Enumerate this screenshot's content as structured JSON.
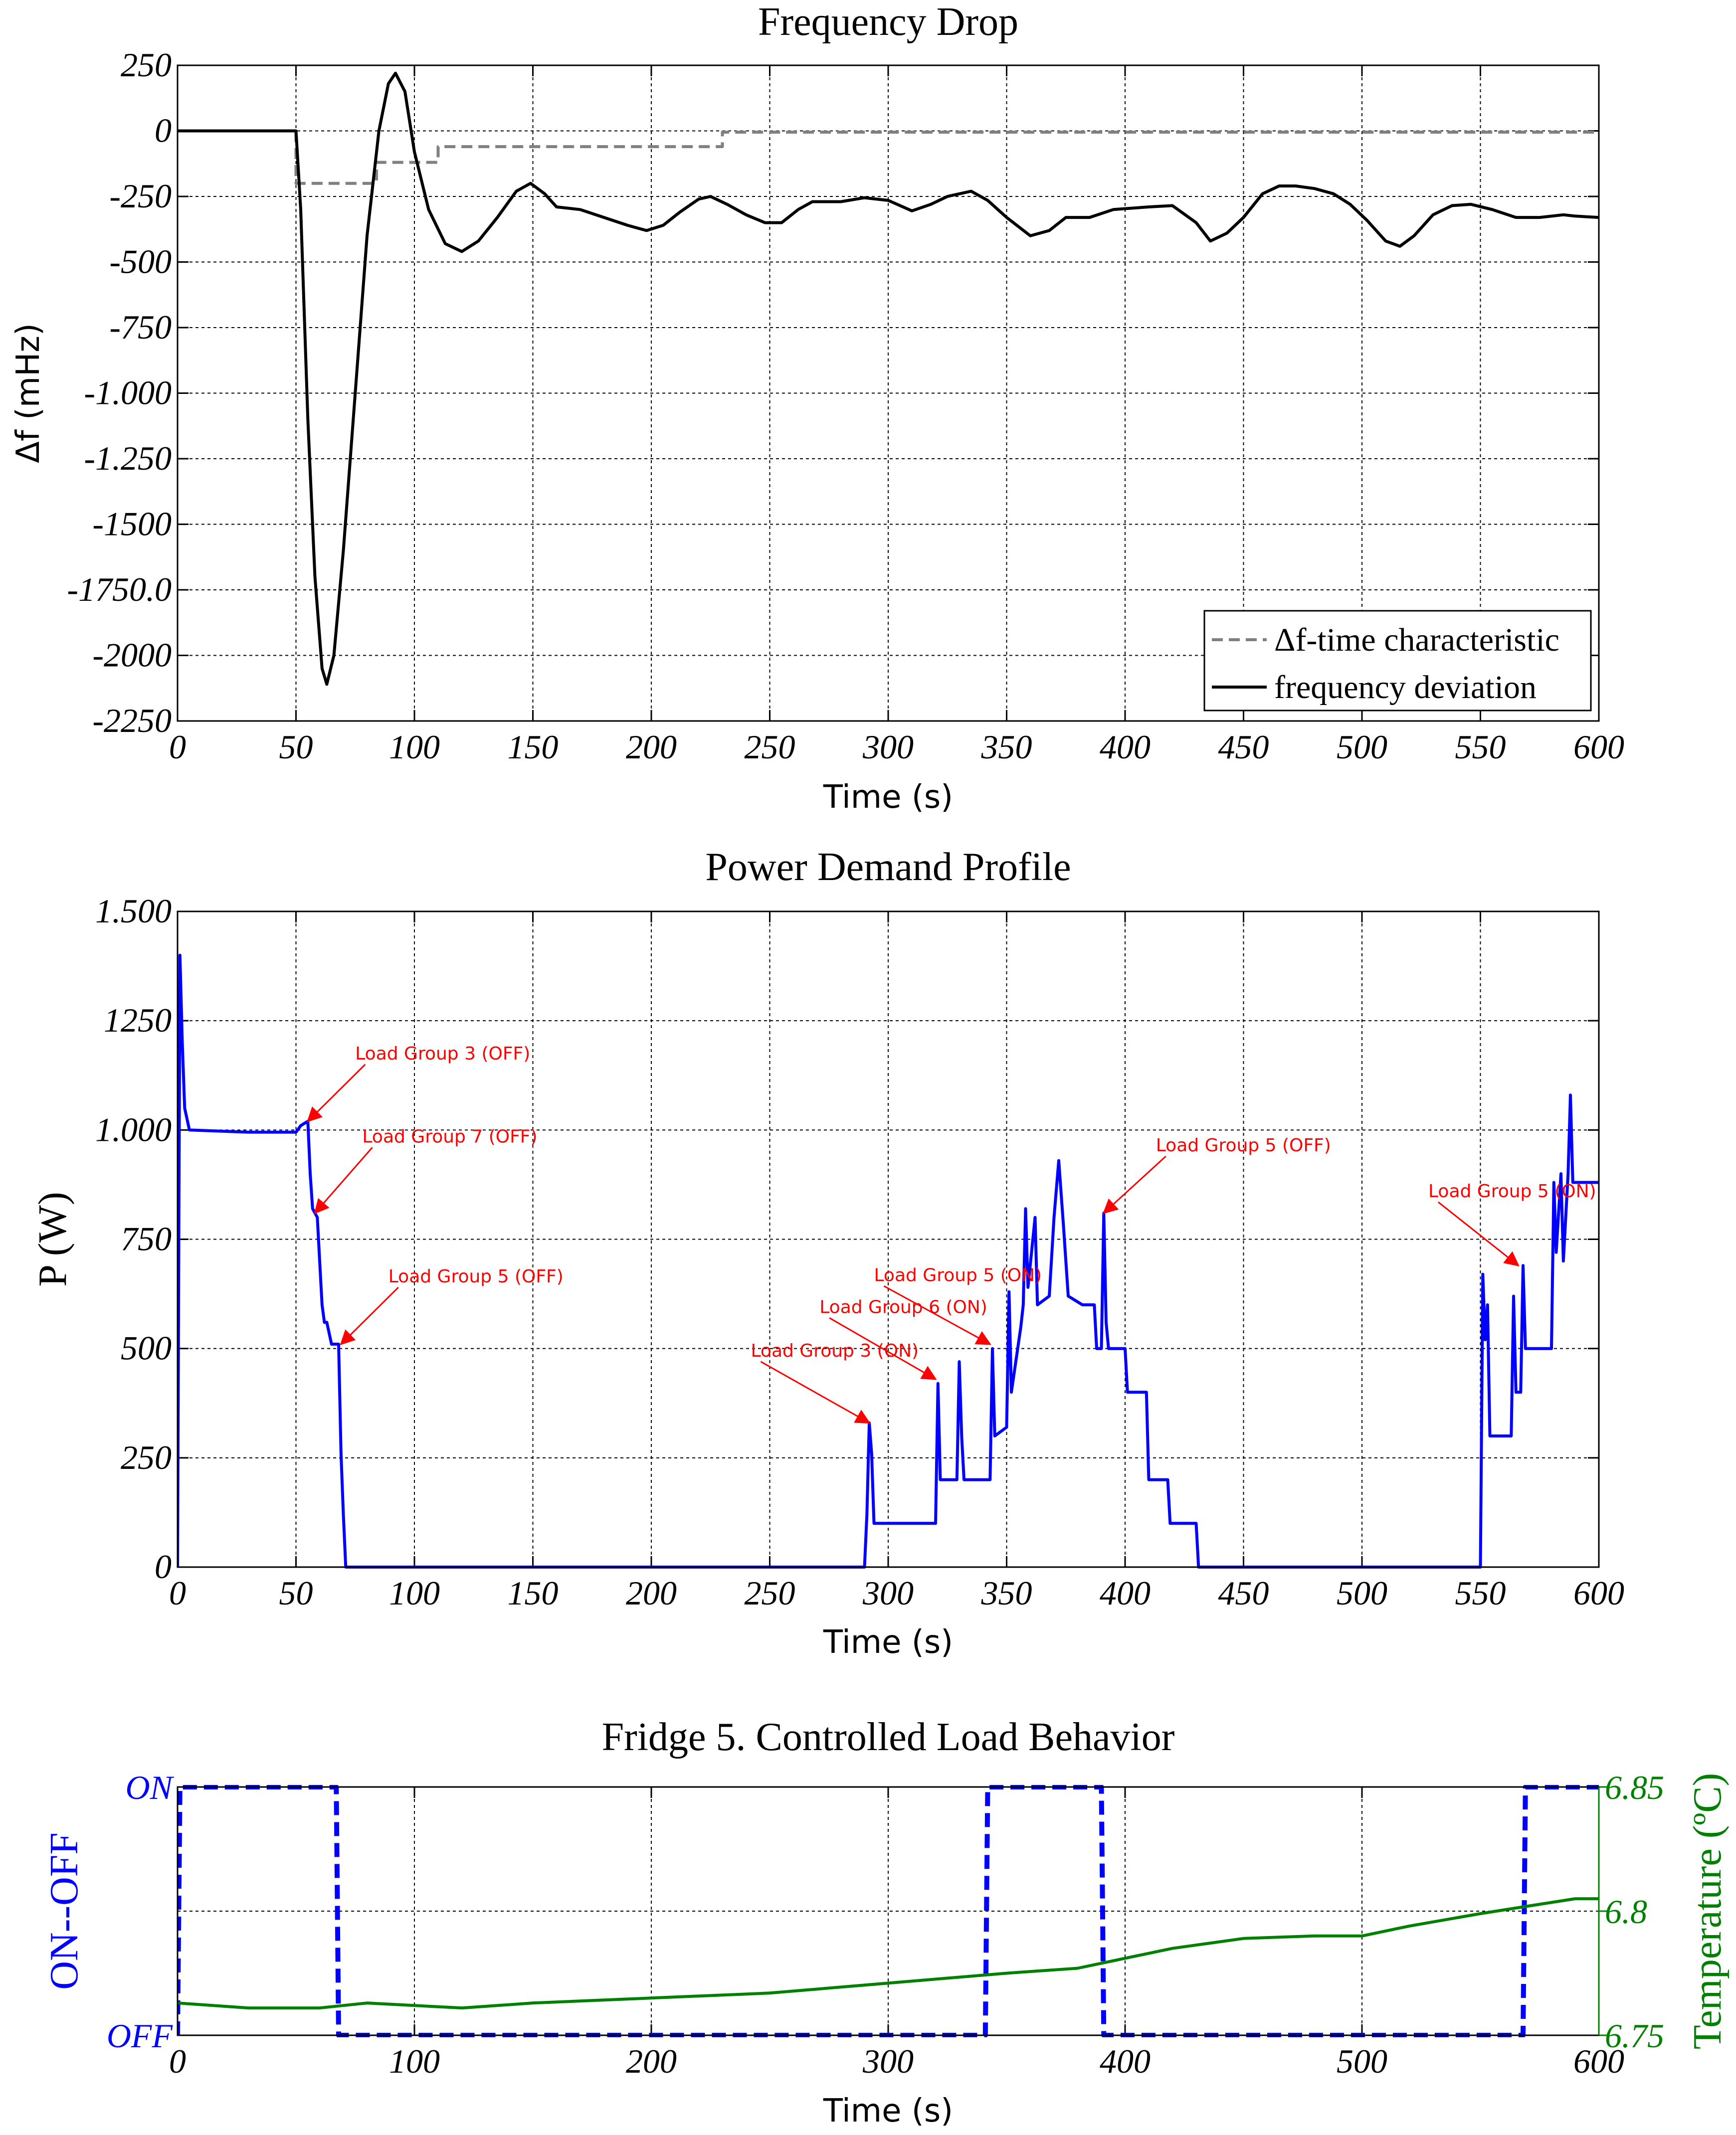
{
  "chart_data": [
    {
      "type": "line",
      "title": "Frequency Drop",
      "xlabel": "Time (s)",
      "ylabel": "Δf (mHz)",
      "xlim": [
        0,
        600
      ],
      "ylim": [
        -2250,
        250
      ],
      "x_ticks": [
        0,
        50,
        100,
        150,
        200,
        250,
        300,
        350,
        400,
        450,
        500,
        550,
        600
      ],
      "y_ticks": [
        {
          "v": 250,
          "label": "250"
        },
        {
          "v": 0,
          "label": "0"
        },
        {
          "v": -250,
          "label": "-250"
        },
        {
          "v": -500,
          "label": "-500"
        },
        {
          "v": -750,
          "label": "-750"
        },
        {
          "v": -1000,
          "label": "-1.000"
        },
        {
          "v": -1250,
          "label": "-1.250"
        },
        {
          "v": -1500,
          "label": "-1500"
        },
        {
          "v": -1750,
          "label": "-1750.0"
        },
        {
          "v": -2000,
          "label": "-2000"
        },
        {
          "v": -2250,
          "label": "-2250"
        }
      ],
      "grid": true,
      "legend": "bottom-right",
      "series": [
        {
          "name": "Δf-time characteristic",
          "color": "#808080",
          "style": "dashed",
          "step": true,
          "points": [
            [
              0,
              0
            ],
            [
              50,
              0
            ],
            [
              50,
              -200
            ],
            [
              70,
              -200
            ],
            [
              70,
              -200
            ],
            [
              84,
              -200
            ],
            [
              84,
              -120
            ],
            [
              110,
              -120
            ],
            [
              110,
              -60
            ],
            [
              230,
              -60
            ],
            [
              230,
              -5
            ],
            [
              600,
              -5
            ]
          ]
        },
        {
          "name": "frequency deviation",
          "color": "#000000",
          "style": "solid",
          "points": [
            [
              0,
              0
            ],
            [
              50,
              0
            ],
            [
              52,
              -300
            ],
            [
              55,
              -1100
            ],
            [
              58,
              -1700
            ],
            [
              61,
              -2050
            ],
            [
              63,
              -2110
            ],
            [
              66,
              -2000
            ],
            [
              70,
              -1600
            ],
            [
              75,
              -1000
            ],
            [
              80,
              -400
            ],
            [
              85,
              0
            ],
            [
              89,
              180
            ],
            [
              92,
              220
            ],
            [
              96,
              150
            ],
            [
              100,
              -80
            ],
            [
              106,
              -300
            ],
            [
              113,
              -430
            ],
            [
              120,
              -460
            ],
            [
              127,
              -420
            ],
            [
              135,
              -330
            ],
            [
              143,
              -230
            ],
            [
              149,
              -200
            ],
            [
              155,
              -240
            ],
            [
              160,
              -290
            ],
            [
              170,
              -300
            ],
            [
              180,
              -330
            ],
            [
              190,
              -360
            ],
            [
              198,
              -380
            ],
            [
              205,
              -360
            ],
            [
              212,
              -310
            ],
            [
              220,
              -260
            ],
            [
              225,
              -250
            ],
            [
              232,
              -280
            ],
            [
              240,
              -320
            ],
            [
              248,
              -350
            ],
            [
              255,
              -350
            ],
            [
              262,
              -300
            ],
            [
              268,
              -270
            ],
            [
              280,
              -270
            ],
            [
              290,
              -255
            ],
            [
              300,
              -265
            ],
            [
              305,
              -285
            ],
            [
              310,
              -305
            ],
            [
              318,
              -280
            ],
            [
              325,
              -250
            ],
            [
              335,
              -230
            ],
            [
              342,
              -265
            ],
            [
              350,
              -330
            ],
            [
              360,
              -400
            ],
            [
              368,
              -380
            ],
            [
              375,
              -330
            ],
            [
              385,
              -330
            ],
            [
              395,
              -300
            ],
            [
              410,
              -290
            ],
            [
              420,
              -285
            ],
            [
              430,
              -350
            ],
            [
              436,
              -420
            ],
            [
              443,
              -390
            ],
            [
              450,
              -330
            ],
            [
              458,
              -240
            ],
            [
              465,
              -210
            ],
            [
              472,
              -210
            ],
            [
              480,
              -220
            ],
            [
              488,
              -240
            ],
            [
              495,
              -280
            ],
            [
              502,
              -340
            ],
            [
              510,
              -420
            ],
            [
              516,
              -440
            ],
            [
              522,
              -400
            ],
            [
              530,
              -320
            ],
            [
              538,
              -285
            ],
            [
              546,
              -280
            ],
            [
              555,
              -300
            ],
            [
              565,
              -330
            ],
            [
              575,
              -330
            ],
            [
              585,
              -320
            ],
            [
              590,
              -325
            ],
            [
              600,
              -330
            ]
          ]
        }
      ]
    },
    {
      "type": "line",
      "title": "Power Demand Profile",
      "xlabel": "Time (s)",
      "ylabel": "P (W)",
      "xlim": [
        0,
        600
      ],
      "ylim": [
        0,
        1500
      ],
      "x_ticks": [
        0,
        50,
        100,
        150,
        200,
        250,
        300,
        350,
        400,
        450,
        500,
        550,
        600
      ],
      "y_ticks": [
        {
          "v": 1500,
          "label": "1.500"
        },
        {
          "v": 1250,
          "label": "1250"
        },
        {
          "v": 1000,
          "label": "1.000"
        },
        {
          "v": 750,
          "label": "750"
        },
        {
          "v": 500,
          "label": "500"
        },
        {
          "v": 250,
          "label": "250"
        },
        {
          "v": 0,
          "label": "0"
        }
      ],
      "grid": true,
      "series": [
        {
          "color": "#0000ff",
          "style": "solid",
          "points": [
            [
              0,
              0
            ],
            [
              1,
              1400
            ],
            [
              2,
              1200
            ],
            [
              3,
              1050
            ],
            [
              5,
              1000
            ],
            [
              30,
              995
            ],
            [
              50,
              995
            ],
            [
              52,
              1010
            ],
            [
              55,
              1020
            ],
            [
              56,
              900
            ],
            [
              57,
              820
            ],
            [
              59,
              800
            ],
            [
              60,
              700
            ],
            [
              61,
              600
            ],
            [
              62,
              560
            ],
            [
              63,
              560
            ],
            [
              65,
              510
            ],
            [
              68,
              510
            ],
            [
              69,
              260
            ],
            [
              70,
              120
            ],
            [
              71,
              0
            ],
            [
              290,
              0
            ],
            [
              291,
              120
            ],
            [
              292,
              330
            ],
            [
              293,
              260
            ],
            [
              294,
              100
            ],
            [
              320,
              100
            ],
            [
              321,
              420
            ],
            [
              322,
              200
            ],
            [
              329,
              200
            ],
            [
              330,
              470
            ],
            [
              331,
              300
            ],
            [
              332,
              200
            ],
            [
              343,
              200
            ],
            [
              344,
              500
            ],
            [
              345,
              300
            ],
            [
              350,
              320
            ],
            [
              351,
              630
            ],
            [
              352,
              400
            ],
            [
              356,
              550
            ],
            [
              357,
              600
            ],
            [
              358,
              820
            ],
            [
              359,
              640
            ],
            [
              362,
              800
            ],
            [
              363,
              600
            ],
            [
              368,
              620
            ],
            [
              370,
              800
            ],
            [
              372,
              930
            ],
            [
              374,
              780
            ],
            [
              376,
              620
            ],
            [
              382,
              600
            ],
            [
              387,
              600
            ],
            [
              388,
              500
            ],
            [
              390,
              500
            ],
            [
              391,
              810
            ],
            [
              392,
              560
            ],
            [
              393,
              500
            ],
            [
              400,
              500
            ],
            [
              401,
              400
            ],
            [
              409,
              400
            ],
            [
              410,
              200
            ],
            [
              418,
              200
            ],
            [
              419,
              100
            ],
            [
              430,
              100
            ],
            [
              431,
              0
            ],
            [
              550,
              0
            ],
            [
              551,
              670
            ],
            [
              552,
              520
            ],
            [
              553,
              600
            ],
            [
              554,
              300
            ],
            [
              563,
              300
            ],
            [
              564,
              620
            ],
            [
              565,
              400
            ],
            [
              567,
              400
            ],
            [
              568,
              690
            ],
            [
              569,
              500
            ],
            [
              580,
              500
            ],
            [
              581,
              880
            ],
            [
              582,
              720
            ],
            [
              584,
              900
            ],
            [
              585,
              700
            ],
            [
              587,
              900
            ],
            [
              588,
              1080
            ],
            [
              589,
              880
            ],
            [
              600,
              880
            ]
          ]
        }
      ],
      "annotations": [
        {
          "text": "Load Group 3 (OFF)",
          "x": 55,
          "y": 1020,
          "text_x": 75,
          "text_y": 1150
        },
        {
          "text": "Load Group 7 (OFF)",
          "x": 58,
          "y": 810,
          "text_x": 78,
          "text_y": 960
        },
        {
          "text": "Load Group 5 (OFF)",
          "x": 69,
          "y": 510,
          "text_x": 89,
          "text_y": 640
        },
        {
          "text": "Load Group 3 (ON)",
          "x": 292,
          "y": 330,
          "text_x": 242,
          "text_y": 470
        },
        {
          "text": "Load Group 6 (ON)",
          "x": 320,
          "y": 430,
          "text_x": 271,
          "text_y": 570
        },
        {
          "text": "Load Group 5 (ON)",
          "x": 343,
          "y": 510,
          "text_x": 294,
          "text_y": 643
        },
        {
          "text": "Load Group 5 (OFF)",
          "x": 391,
          "y": 810,
          "text_x": 413,
          "text_y": 940
        },
        {
          "text": "Load Group 5 (ON)",
          "x": 566,
          "y": 690,
          "text_x": 528,
          "text_y": 835
        }
      ]
    },
    {
      "type": "line",
      "title": "Fridge 5. Controlled Load Behavior",
      "xlabel": "Time (s)",
      "ylabel": "ON--OFF",
      "ylabel_right": "Temperature (ºC)",
      "xlim": [
        0,
        600
      ],
      "x_ticks": [
        0,
        100,
        200,
        300,
        400,
        500,
        600
      ],
      "y_ticks_left": [
        {
          "v": 1,
          "label": "ON"
        },
        {
          "v": 0,
          "label": "OFF"
        }
      ],
      "y_ticks_right": [
        {
          "v": 6.85,
          "label": "6.85"
        },
        {
          "v": 6.8,
          "label": "6.8"
        },
        {
          "v": 6.75,
          "label": "6.75"
        }
      ],
      "ylim_right": [
        6.75,
        6.85
      ],
      "grid": true,
      "series": [
        {
          "color": "#0000ff",
          "style": "dashed",
          "axis": "left",
          "points": [
            [
              0,
              0
            ],
            [
              1,
              1
            ],
            [
              67,
              1
            ],
            [
              68,
              0
            ],
            [
              341,
              0
            ],
            [
              342,
              1
            ],
            [
              390,
              1
            ],
            [
              391,
              0
            ],
            [
              568,
              0
            ],
            [
              569,
              1
            ],
            [
              600,
              1
            ]
          ]
        },
        {
          "color": "#008000",
          "style": "solid",
          "axis": "right",
          "points": [
            [
              0,
              6.763
            ],
            [
              30,
              6.761
            ],
            [
              60,
              6.761
            ],
            [
              80,
              6.763
            ],
            [
              120,
              6.761
            ],
            [
              150,
              6.763
            ],
            [
              200,
              6.765
            ],
            [
              250,
              6.767
            ],
            [
              300,
              6.771
            ],
            [
              350,
              6.775
            ],
            [
              380,
              6.777
            ],
            [
              400,
              6.781
            ],
            [
              420,
              6.785
            ],
            [
              450,
              6.789
            ],
            [
              480,
              6.79
            ],
            [
              500,
              6.79
            ],
            [
              520,
              6.794
            ],
            [
              550,
              6.799
            ],
            [
              570,
              6.802
            ],
            [
              590,
              6.805
            ],
            [
              600,
              6.805
            ]
          ]
        }
      ]
    }
  ]
}
